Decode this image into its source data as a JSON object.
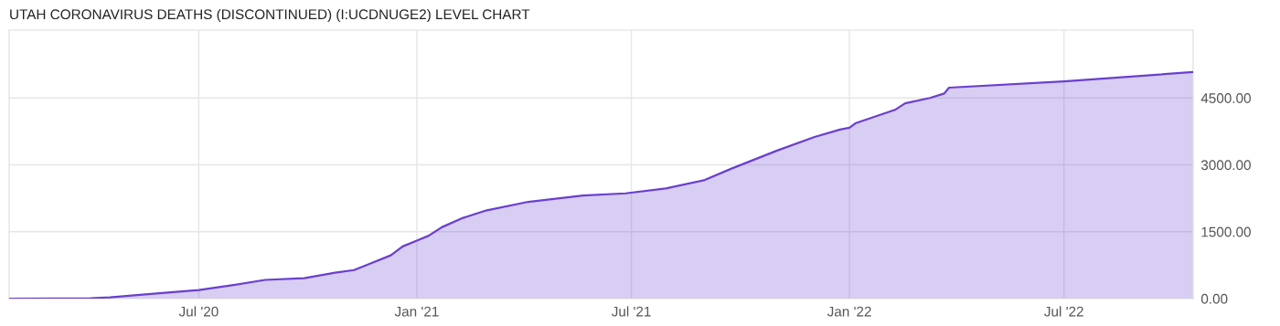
{
  "chart_data": {
    "type": "area",
    "title": "UTAH CORONAVIRUS DEATHS (DISCONTINUED) (I:UCDNUGE2) LEVEL CHART",
    "x": [
      "2020-01-23",
      "2020-04-01",
      "2020-04-17",
      "2020-05-10",
      "2020-06-07",
      "2020-07-01",
      "2020-07-29",
      "2020-08-26",
      "2020-09-28",
      "2020-10-24",
      "2020-11-09",
      "2020-11-22",
      "2020-12-10",
      "2020-12-20",
      "2021-01-01",
      "2021-01-11",
      "2021-01-22",
      "2021-02-09",
      "2021-03-01",
      "2021-04-05",
      "2021-05-21",
      "2021-06-26",
      "2021-07-30",
      "2021-09-01",
      "2021-09-24",
      "2021-11-01",
      "2021-12-02",
      "2021-12-24",
      "2022-01-01",
      "2022-01-06",
      "2022-01-19",
      "2022-02-09",
      "2022-02-17",
      "2022-03-10",
      "2022-03-22",
      "2022-03-26",
      "2022-07-01",
      "2022-10-18"
    ],
    "series": [
      {
        "color": "#6a3fd0",
        "values": [
          0,
          10,
          30,
          80,
          140,
          190,
          300,
          420,
          460,
          580,
          640,
          780,
          970,
          1170,
          1300,
          1410,
          1600,
          1810,
          1980,
          2170,
          2310,
          2360,
          2470,
          2660,
          2920,
          3320,
          3620,
          3790,
          3830,
          3930,
          4050,
          4240,
          4380,
          4500,
          4600,
          4730,
          4870,
          5080
        ]
      }
    ],
    "xlim": [
      "2020-01-23",
      "2022-10-18"
    ],
    "xticks": [
      {
        "value": "2020-07-01",
        "label": "Jul '20"
      },
      {
        "value": "2021-01-01",
        "label": "Jan '21"
      },
      {
        "value": "2021-07-01",
        "label": "Jul '21"
      },
      {
        "value": "2022-01-01",
        "label": "Jan '22"
      },
      {
        "value": "2022-07-01",
        "label": "Jul '22"
      }
    ],
    "ylim": [
      0,
      6020
    ],
    "yticks": [
      {
        "value": 0,
        "label": "0.00"
      },
      {
        "value": 1500,
        "label": "1500.00"
      },
      {
        "value": 3000,
        "label": "3000.00"
      },
      {
        "value": 4500,
        "label": "4500.00"
      }
    ],
    "grid": true,
    "legend": false
  }
}
